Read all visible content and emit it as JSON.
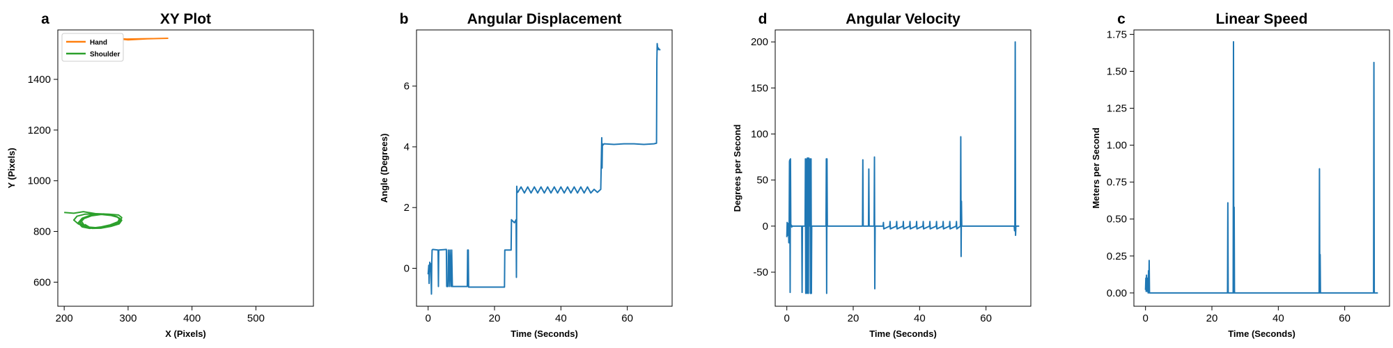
{
  "colors": {
    "blue": "#1f77b4",
    "orange": "#ff7f0e",
    "green": "#2ca02c"
  },
  "chart_data": [
    {
      "type": "line",
      "panel_label": "a",
      "title": "XY Plot",
      "xlabel": "X (Pixels)",
      "ylabel": "Y (Pixels)",
      "xlim": [
        190,
        590
      ],
      "ylim": [
        505,
        1595
      ],
      "xticks": [
        200,
        300,
        400,
        500
      ],
      "yticks": [
        600,
        800,
        1000,
        1200,
        1400
      ],
      "legend": "top-left",
      "series": [
        {
          "name": "Hand",
          "color": "#ff7f0e",
          "x": [
            250,
            252,
            256,
            262,
            268,
            272,
            278,
            285,
            292,
            300,
            315,
            330,
            345,
            362,
            345,
            320,
            298,
            285,
            270,
            255,
            250
          ],
          "y": [
            1568,
            1564,
            1562,
            1560,
            1560,
            1561,
            1562,
            1560,
            1558,
            1556,
            1558,
            1560,
            1561,
            1562,
            1561,
            1560,
            1559,
            1561,
            1562,
            1566,
            1568
          ]
        },
        {
          "name": "Shoulder",
          "color": "#2ca02c",
          "x": [
            200,
            215,
            230,
            250,
            270,
            285,
            290,
            288,
            280,
            265,
            250,
            235,
            222,
            215,
            220,
            232,
            248,
            262,
            278,
            287,
            284,
            272,
            258,
            245,
            232,
            225,
            230,
            243,
            258,
            272,
            284,
            290,
            286,
            273,
            258,
            244,
            232,
            227,
            233,
            246,
            262,
            276,
            287,
            284,
            270,
            255,
            240,
            228,
            222,
            228,
            241,
            257,
            271,
            283,
            288,
            283,
            270,
            254,
            240,
            232
          ],
          "y": [
            875,
            872,
            878,
            870,
            868,
            865,
            855,
            840,
            828,
            820,
            815,
            818,
            830,
            845,
            860,
            868,
            870,
            866,
            862,
            852,
            838,
            826,
            818,
            814,
            820,
            834,
            850,
            862,
            867,
            864,
            856,
            844,
            830,
            820,
            813,
            812,
            822,
            840,
            856,
            866,
            869,
            864,
            852,
            836,
            824,
            816,
            812,
            818,
            834,
            852,
            864,
            868,
            866,
            858,
            844,
            830,
            820,
            814,
            816,
            828
          ]
        }
      ]
    },
    {
      "type": "line",
      "panel_label": "b",
      "title": "Angular Displacement",
      "xlabel": "Time (Seconds)",
      "ylabel": "Angle (Degrees)",
      "xlim": [
        -3.5,
        73.5
      ],
      "ylim": [
        -1.25,
        7.85
      ],
      "xticks": [
        0,
        20,
        40,
        60
      ],
      "yticks": [
        0,
        2,
        4,
        6
      ],
      "series": [
        {
          "color": "#1f77b4",
          "x": [
            0,
            0.2,
            0.3,
            0.5,
            0.6,
            0.8,
            1.0,
            1.1,
            1.2,
            1.4,
            3.0,
            3.1,
            3.2,
            5.5,
            5.6,
            6.0,
            6.1,
            6.5,
            6.6,
            7.0,
            7.1,
            7.3,
            7.4,
            11.8,
            11.9,
            12.1,
            12.2,
            23.0,
            23.1,
            25.0,
            25.1,
            26.0,
            26.5,
            26.6,
            26.7,
            26.8,
            27.0,
            28.0,
            29.0,
            30.0,
            31.0,
            32.0,
            33.0,
            34.0,
            35.0,
            36.0,
            37.0,
            38.0,
            39.0,
            40.0,
            41.0,
            42.0,
            43.0,
            44.0,
            45.0,
            46.0,
            47.0,
            48.0,
            49.0,
            50.0,
            51.0,
            52.0,
            52.3,
            52.4,
            52.5,
            52.6,
            53.0,
            56.0,
            59.0,
            62.0,
            65.0,
            68.0,
            68.8,
            68.9,
            69.0,
            69.2,
            69.4,
            69.6,
            70.0
          ],
          "y": [
            -0.2,
            0.1,
            -0.5,
            0.2,
            -0.1,
            0.15,
            -0.85,
            0.2,
            0.6,
            0.62,
            0.6,
            -0.6,
            0.6,
            0.62,
            -0.6,
            -0.6,
            0.6,
            -0.6,
            0.6,
            -0.6,
            0.6,
            -0.6,
            -0.6,
            -0.6,
            0.6,
            0.6,
            -0.62,
            -0.62,
            0.6,
            0.6,
            1.6,
            1.5,
            1.6,
            -0.3,
            2.7,
            2.5,
            2.5,
            2.68,
            2.48,
            2.68,
            2.48,
            2.68,
            2.48,
            2.68,
            2.48,
            2.68,
            2.48,
            2.68,
            2.48,
            2.68,
            2.48,
            2.68,
            2.48,
            2.68,
            2.48,
            2.68,
            2.48,
            2.68,
            2.48,
            2.6,
            2.5,
            2.6,
            4.3,
            3.3,
            4.1,
            4.05,
            4.1,
            4.08,
            4.1,
            4.1,
            4.08,
            4.1,
            4.12,
            6.8,
            7.4,
            7.2,
            7.25,
            7.2,
            7.2
          ]
        }
      ]
    },
    {
      "type": "line",
      "panel_label": "d",
      "title": "Angular Velocity",
      "xlabel": "Time (Seconds)",
      "ylabel": "Degrees per Second",
      "xlim": [
        -3.5,
        73.5
      ],
      "ylim": [
        -87,
        213
      ],
      "xticks": [
        0,
        20,
        40,
        60
      ],
      "yticks": [
        -50,
        0,
        50,
        100,
        150,
        200
      ],
      "series": [
        {
          "color": "#1f77b4",
          "x": [
            0,
            0.1,
            0.2,
            0.3,
            0.4,
            0.5,
            0.6,
            0.7,
            0.8,
            0.9,
            1.0,
            1.1,
            1.2,
            1.3,
            1.4,
            1.5,
            1.6,
            2.0,
            3.0,
            4.5,
            4.6,
            4.7,
            5.5,
            5.6,
            5.7,
            6.0,
            6.1,
            6.2,
            6.5,
            6.6,
            6.7,
            7.0,
            7.1,
            7.2,
            7.3,
            7.4,
            7.5,
            10.0,
            11.8,
            11.9,
            12.0,
            12.1,
            12.2,
            12.3,
            15.0,
            22.8,
            22.9,
            23.0,
            24.6,
            24.7,
            24.8,
            26.3,
            26.4,
            26.5,
            26.6,
            26.7,
            27.0,
            29.0,
            29.1,
            29.2,
            31.0,
            31.1,
            31.2,
            33.0,
            33.1,
            33.2,
            35.0,
            35.1,
            35.2,
            37.0,
            37.1,
            37.2,
            39.0,
            39.1,
            39.2,
            41.0,
            41.1,
            41.2,
            43.0,
            43.1,
            43.2,
            45.0,
            45.1,
            45.2,
            47.0,
            47.1,
            47.2,
            49.0,
            49.1,
            49.2,
            51.0,
            51.1,
            51.2,
            52.3,
            52.4,
            52.5,
            52.6,
            52.7,
            55.0,
            60.0,
            65.0,
            68.5,
            68.6,
            68.7,
            68.8,
            68.9,
            69.0,
            69.5,
            70.0
          ],
          "y": [
            -12,
            4,
            -10,
            3,
            -5,
            2,
            -18,
            0,
            70,
            72,
            -72,
            73,
            0,
            0,
            1,
            -1,
            0,
            0,
            0,
            0,
            -72,
            0,
            0,
            73,
            -73,
            73,
            -73,
            74,
            -73,
            74,
            0,
            73,
            -73,
            0,
            73,
            -73,
            0,
            0,
            0,
            73,
            -73,
            73,
            0,
            0,
            0,
            0,
            72,
            0,
            0,
            62,
            0,
            0,
            75,
            -68,
            0,
            0,
            0,
            0,
            4,
            -3,
            0,
            5,
            -3,
            0,
            5,
            -3,
            0,
            5,
            -3,
            0,
            5,
            -3,
            0,
            5,
            -3,
            0,
            5,
            -3,
            0,
            5,
            -3,
            0,
            5,
            -3,
            0,
            5,
            -3,
            0,
            5,
            -3,
            0,
            5,
            -3,
            0,
            97,
            -33,
            27,
            0,
            0,
            0,
            0,
            0,
            -5,
            0,
            200,
            -10,
            0,
            0,
            0
          ]
        }
      ]
    },
    {
      "type": "line",
      "panel_label": "c",
      "title": "Linear Speed",
      "xlabel": "Time (Seconds)",
      "ylabel": "Meters per Second",
      "xlim": [
        -3.5,
        73.5
      ],
      "ylim": [
        -0.09,
        1.78
      ],
      "xticks": [
        0,
        20,
        40,
        60
      ],
      "yticks": [
        0.0,
        0.25,
        0.5,
        0.75,
        1.0,
        1.25,
        1.5,
        1.75
      ],
      "series": [
        {
          "color": "#1f77b4",
          "x": [
            0,
            0.1,
            0.2,
            0.3,
            0.4,
            0.5,
            0.6,
            0.7,
            0.8,
            0.9,
            1.0,
            1.1,
            1.2,
            1.4,
            5.0,
            10.0,
            24.7,
            24.8,
            24.9,
            26.4,
            26.5,
            26.6,
            26.7,
            26.8,
            26.9,
            30.0,
            40.0,
            52.3,
            52.4,
            52.5,
            52.6,
            52.7,
            60.0,
            68.7,
            68.8,
            68.9,
            69.0,
            70.0
          ],
          "y": [
            0.02,
            0.1,
            0.01,
            0.12,
            0.03,
            0.08,
            0.01,
            0.1,
            0.0,
            0.15,
            0.02,
            0.22,
            0.0,
            0.0,
            0.0,
            0.0,
            0.0,
            0.61,
            0.0,
            0.0,
            1.7,
            0.0,
            0.58,
            0.0,
            0.0,
            0.0,
            0.0,
            0.0,
            0.84,
            0.0,
            0.26,
            0.0,
            0.0,
            0.0,
            1.56,
            0.0,
            0.0,
            0.0
          ]
        }
      ]
    }
  ]
}
